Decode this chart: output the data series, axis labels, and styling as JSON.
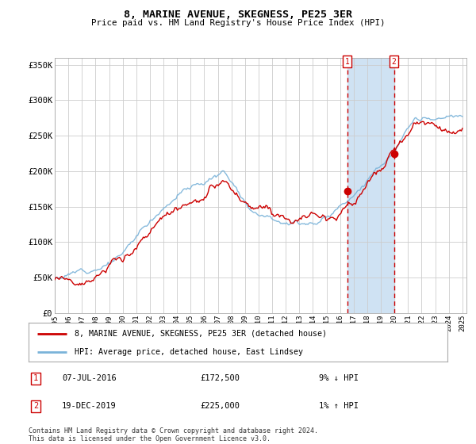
{
  "title": "8, MARINE AVENUE, SKEGNESS, PE25 3ER",
  "subtitle": "Price paid vs. HM Land Registry's House Price Index (HPI)",
  "ylim": [
    0,
    360000
  ],
  "yticks": [
    0,
    50000,
    100000,
    150000,
    200000,
    250000,
    300000,
    350000
  ],
  "ytick_labels": [
    "£0",
    "£50K",
    "£100K",
    "£150K",
    "£200K",
    "£250K",
    "£300K",
    "£350K"
  ],
  "hpi_color": "#7ab3d9",
  "price_color": "#cc0000",
  "marker1_date": 2016.52,
  "marker2_date": 2019.96,
  "marker1_price": 172500,
  "marker2_price": 225000,
  "marker1_label": "07-JUL-2016",
  "marker2_label": "19-DEC-2019",
  "marker1_hpi_pct": "9% ↓ HPI",
  "marker2_hpi_pct": "1% ↑ HPI",
  "legend1": "8, MARINE AVENUE, SKEGNESS, PE25 3ER (detached house)",
  "legend2": "HPI: Average price, detached house, East Lindsey",
  "footnote": "Contains HM Land Registry data © Crown copyright and database right 2024.\nThis data is licensed under the Open Government Licence v3.0.",
  "plot_bg_color": "#ffffff",
  "highlight_color": "#cfe2f3",
  "grid_color": "#cccccc",
  "border_color": "#aaaaaa"
}
